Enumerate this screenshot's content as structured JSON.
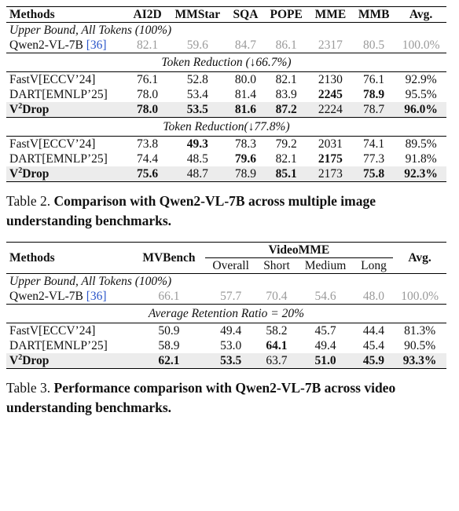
{
  "table2": {
    "headers": [
      "Methods",
      "AI2D",
      "MMStar",
      "SQA",
      "POPE",
      "MME",
      "MMB",
      "Avg."
    ],
    "upper_bound_label": "Upper Bound, All Tokens (100%)",
    "baseline": {
      "name": "Qwen2-VL-7B",
      "cite": "[36]",
      "values": [
        "82.1",
        "59.6",
        "84.7",
        "86.1",
        "2317",
        "80.5",
        "100.0%"
      ]
    },
    "sections": [
      {
        "label": "Token Reduction (↓66.7%)",
        "rows": [
          {
            "name": "FastV[ECCV’24]",
            "values": [
              "76.1",
              "52.8",
              "80.0",
              "82.1",
              "2130",
              "76.1",
              "92.9%"
            ],
            "bold": [
              false,
              false,
              false,
              false,
              false,
              false,
              false
            ]
          },
          {
            "name": "DART[EMNLP’25]",
            "values": [
              "78.0",
              "53.4",
              "81.4",
              "83.9",
              "2245",
              "78.9",
              "95.5%"
            ],
            "bold": [
              false,
              false,
              false,
              false,
              true,
              true,
              false
            ]
          },
          {
            "name_base": "V",
            "name_sup": "2",
            "name_rest": "Drop",
            "values": [
              "78.0",
              "53.5",
              "81.6",
              "87.2",
              "2224",
              "78.7",
              "96.0%"
            ],
            "bold": [
              true,
              true,
              true,
              true,
              false,
              false,
              true
            ]
          }
        ]
      },
      {
        "label": "Token Reduction(↓77.8%)",
        "rows": [
          {
            "name": "FastV[ECCV’24]",
            "values": [
              "73.8",
              "49.3",
              "78.3",
              "79.2",
              "2031",
              "74.1",
              "89.5%"
            ],
            "bold": [
              false,
              true,
              false,
              false,
              false,
              false,
              false
            ]
          },
          {
            "name": "DART[EMNLP’25]",
            "values": [
              "74.4",
              "48.5",
              "79.6",
              "82.1",
              "2175",
              "77.3",
              "91.8%"
            ],
            "bold": [
              false,
              false,
              true,
              false,
              true,
              false,
              false
            ]
          },
          {
            "name_base": "V",
            "name_sup": "2",
            "name_rest": "Drop",
            "values": [
              "75.6",
              "48.7",
              "78.9",
              "85.1",
              "2173",
              "75.8",
              "92.3%"
            ],
            "bold": [
              true,
              false,
              false,
              true,
              false,
              true,
              true
            ]
          }
        ]
      }
    ],
    "caption_lead": "Table 2.",
    "caption_body": "Comparison with Qwen2-VL-7B across multiple image understanding benchmarks."
  },
  "table3": {
    "headers": {
      "methods": "Methods",
      "mvbench": "MVBench",
      "videomme": "VideoMME",
      "avg": "Avg."
    },
    "subheaders": [
      "Overall",
      "Short",
      "Medium",
      "Long"
    ],
    "upper_bound_label": "Upper Bound, All Tokens (100%)",
    "baseline": {
      "name": "Qwen2-VL-7B",
      "cite": "[36]",
      "values": [
        "66.1",
        "57.7",
        "70.4",
        "54.6",
        "48.0",
        "100.0%"
      ]
    },
    "section_label": "Average Retention Ratio = 20%",
    "rows": [
      {
        "name": "FastV[ECCV’24]",
        "values": [
          "50.9",
          "49.4",
          "58.2",
          "45.7",
          "44.4",
          "81.3%"
        ],
        "bold": [
          false,
          false,
          false,
          false,
          false,
          false
        ]
      },
      {
        "name": "DART[EMNLP’25]",
        "values": [
          "58.9",
          "53.0",
          "64.1",
          "49.4",
          "45.4",
          "90.5%"
        ],
        "bold": [
          false,
          false,
          true,
          false,
          false,
          false
        ]
      },
      {
        "name_base": "V",
        "name_sup": "2",
        "name_rest": "Drop",
        "values": [
          "62.1",
          "53.5",
          "63.7",
          "51.0",
          "45.9",
          "93.3%"
        ],
        "bold": [
          true,
          true,
          false,
          true,
          true,
          true
        ]
      }
    ],
    "caption_lead": "Table 3.",
    "caption_body": "Performance comparison with Qwen2-VL-7B across video understanding benchmarks."
  }
}
